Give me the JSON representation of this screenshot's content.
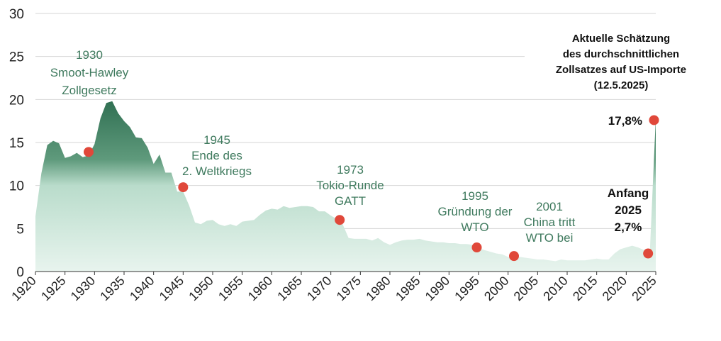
{
  "colors": {
    "area_top_dark": "#3b7a5e",
    "area_light": "#c3e2d2",
    "marker": "#e0483a",
    "annotation_green": "#3f7a5e",
    "grid": "#d6d6d6"
  },
  "chart_data": {
    "type": "area",
    "title": "",
    "xlabel": "",
    "ylabel": "",
    "xlim": [
      1920,
      2025
    ],
    "ylim": [
      0,
      30
    ],
    "grid": true,
    "x_ticks": [
      "1920",
      "1925",
      "1930",
      "1935",
      "1940",
      "1945",
      "1950",
      "1955",
      "1960",
      "1965",
      "1970",
      "1975",
      "1980",
      "1985",
      "1990",
      "1995",
      "2000",
      "2005",
      "2010",
      "2015",
      "2020",
      "2025"
    ],
    "y_ticks": [
      "0",
      "5",
      "10",
      "15",
      "20",
      "25",
      "30"
    ],
    "series": [
      {
        "x": [
          1920,
          1921,
          1922,
          1923,
          1924,
          1925,
          1926,
          1927,
          1928,
          1929,
          1930,
          1931,
          1932,
          1933,
          1934,
          1935,
          1936,
          1937,
          1938,
          1939,
          1940,
          1941,
          1942,
          1943,
          1944,
          1945,
          1946,
          1947,
          1948,
          1949,
          1950,
          1951,
          1952,
          1953,
          1954,
          1955,
          1956,
          1957,
          1958,
          1959,
          1960,
          1961,
          1962,
          1963,
          1964,
          1965,
          1966,
          1967,
          1968,
          1969,
          1970,
          1971,
          1972,
          1973,
          1974,
          1975,
          1976,
          1977,
          1978,
          1979,
          1980,
          1981,
          1982,
          1983,
          1984,
          1985,
          1986,
          1987,
          1988,
          1989,
          1990,
          1991,
          1992,
          1993,
          1994,
          1995,
          1996,
          1997,
          1998,
          1999,
          2000,
          2001,
          2002,
          2003,
          2004,
          2005,
          2006,
          2007,
          2008,
          2009,
          2010,
          2011,
          2012,
          2013,
          2014,
          2015,
          2016,
          2017,
          2018,
          2019,
          2020,
          2021,
          2022,
          2023,
          2024,
          2025
        ],
        "values": [
          6.4,
          11.4,
          14.7,
          15.2,
          14.9,
          13.2,
          13.4,
          13.8,
          13.3,
          13.5,
          14.8,
          17.8,
          19.6,
          19.8,
          18.4,
          17.5,
          16.8,
          15.6,
          15.5,
          14.4,
          12.5,
          13.6,
          11.5,
          11.5,
          9.3,
          9.3,
          7.7,
          5.7,
          5.5,
          5.9,
          6.0,
          5.5,
          5.3,
          5.5,
          5.3,
          5.8,
          5.9,
          6.0,
          6.6,
          7.1,
          7.3,
          7.2,
          7.6,
          7.4,
          7.5,
          7.6,
          7.6,
          7.5,
          7.0,
          7.0,
          6.5,
          6.1,
          5.5,
          3.9,
          3.8,
          3.8,
          3.8,
          3.6,
          3.9,
          3.4,
          3.1,
          3.4,
          3.6,
          3.7,
          3.7,
          3.8,
          3.6,
          3.5,
          3.4,
          3.4,
          3.3,
          3.3,
          3.2,
          3.2,
          3.1,
          2.7,
          2.5,
          2.3,
          2.1,
          2.0,
          1.7,
          1.6,
          1.7,
          1.6,
          1.5,
          1.4,
          1.4,
          1.3,
          1.2,
          1.4,
          1.3,
          1.3,
          1.3,
          1.3,
          1.4,
          1.5,
          1.4,
          1.4,
          2.1,
          2.6,
          2.8,
          3.0,
          2.8,
          2.5,
          2.4,
          17.8
        ]
      }
    ],
    "markers": [
      {
        "x": 1929,
        "y": 13.9
      },
      {
        "x": 1945,
        "y": 9.8
      },
      {
        "x": 1971.5,
        "y": 6.0
      },
      {
        "x": 1994.7,
        "y": 2.8
      },
      {
        "x": 2001,
        "y": 1.8
      },
      {
        "x": 2023.7,
        "y": 2.1
      },
      {
        "x": 2024.7,
        "y": 17.6
      }
    ],
    "annotations": {
      "smoot_hawley": [
        "1930",
        "Smoot-Hawley",
        "Zollgesetz"
      ],
      "ww2": [
        "1945",
        "Ende des",
        "2. Weltkriegs"
      ],
      "tokyo": [
        "1973",
        "Tokio-Runde",
        "GATT"
      ],
      "wto": [
        "1995",
        "Gründung der",
        "WTO"
      ],
      "china": [
        "2001",
        "China tritt",
        "WTO bei"
      ],
      "estimate": [
        "Aktuelle Schätzung",
        "des durchschnittlichen",
        "Zollsatzes auf US-Importe",
        "(12.5.2025)"
      ],
      "current_value": "17,8%",
      "start_2025": [
        "Anfang",
        "2025",
        "2,7%"
      ]
    }
  }
}
